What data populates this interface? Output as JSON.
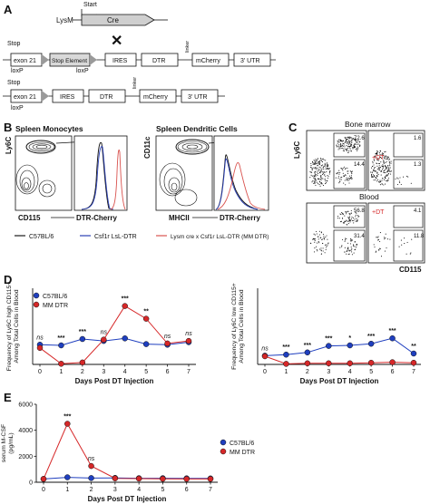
{
  "panel_labels": {
    "a": "A",
    "b": "B",
    "c": "C",
    "d": "D",
    "e": "E"
  },
  "construct": {
    "start": "Start",
    "lysm": "LysM",
    "cre": "Cre",
    "row2": {
      "stop": "Stop",
      "exon": "exon 21",
      "stop_element": "Stop Element",
      "loxp_a": "loxP",
      "loxp_b": "loxP",
      "ires": "IRES",
      "dtr": "DTR",
      "linker": "linker",
      "mcherry": "mCherry",
      "utr": "3' UTR",
      "cross": "✕"
    },
    "row3": {
      "stop": "Stop",
      "exon": "exon 21",
      "loxp": "loxP",
      "ires": "IRES",
      "dtr": "DTR",
      "linker": "linker",
      "mcherry": "mCherry",
      "utr": "3' UTR"
    }
  },
  "panel_b": {
    "title_left": "Spleen Monocytes",
    "title_right": "Spleen Dendritic Cells",
    "ylabel_left": "Ly6C",
    "ylabel_right": "CD11c",
    "xlabel_left_a": "CD115",
    "xlabel_left_b": "DTR-Cherry",
    "xlabel_right_a": "MHCII",
    "xlabel_right_b": "DTR-Cherry",
    "legend": [
      {
        "label": "C57BL/6",
        "color": "#1a1a1a"
      },
      {
        "label": "Csf1r LsL-DTR",
        "color": "#2a3fb5"
      },
      {
        "label": "Lysm cre x Csf1r LsL-DTR (MM DTR)",
        "color": "#d9534f"
      }
    ]
  },
  "panel_c": {
    "title_bm": "Bone marrow",
    "title_blood": "Blood",
    "ylabel": "Ly6C",
    "xlabel": "CD115",
    "dt": "+DT",
    "gates": {
      "bm_ctrl_top": "72.6",
      "bm_ctrl_bot": "14.4",
      "bm_dt_top": "1.6",
      "bm_dt_bot": "1.3",
      "bl_ctrl_top": "56.8",
      "bl_ctrl_bot": "31.4",
      "bl_dt_top": "4.1",
      "bl_dt_bot": "11.8"
    }
  },
  "colors": {
    "c57": "#1f3fbf",
    "mm": "#d62728",
    "ink": "#111111"
  },
  "chart_data": [
    {
      "type": "line",
      "title": "",
      "xlabel": "Days Post DT Injection",
      "ylabel": "Frequency of Ly6C high CD115+ Among Total Cells in Blood",
      "x": [
        0,
        1,
        2,
        3,
        4,
        5,
        6,
        7
      ],
      "ylim": [
        0,
        12
      ],
      "series": [
        {
          "name": "C57BL/6",
          "values": [
            3.1,
            3.0,
            4.0,
            3.7,
            4.1,
            3.2,
            3.1,
            3.5
          ]
        },
        {
          "name": "MM DTR",
          "values": [
            2.6,
            0.1,
            0.3,
            3.9,
            9.2,
            7.2,
            3.3,
            3.7
          ]
        }
      ],
      "significance": [
        "ns",
        "***",
        "***",
        "ns",
        "***",
        "**",
        "ns",
        "ns"
      ],
      "legend": [
        {
          "label": "C57BL/6"
        },
        {
          "label": "MM DTR"
        }
      ]
    },
    {
      "type": "line",
      "title": "",
      "xlabel": "Days Post DT Injection",
      "ylabel": "Frequency of Ly6C low CD115+ Among Total Cells in Blood",
      "x": [
        0,
        1,
        2,
        3,
        4,
        5,
        6,
        7
      ],
      "ylim": [
        0,
        14
      ],
      "series": [
        {
          "name": "C57BL/6",
          "values": [
            1.6,
            1.8,
            2.2,
            3.4,
            3.5,
            3.8,
            4.8,
            2.0
          ]
        },
        {
          "name": "MM DTR",
          "values": [
            1.5,
            0.1,
            0.2,
            0.2,
            0.2,
            0.3,
            0.4,
            0.3
          ]
        }
      ],
      "significance": [
        "ns",
        "***",
        "***",
        "***",
        "*",
        "***",
        "***",
        "**"
      ]
    },
    {
      "type": "line",
      "title": "",
      "xlabel": "Days Post DT Injection",
      "ylabel": "serum M-CSF (pg/mL)",
      "x": [
        0,
        1,
        2,
        3,
        4,
        5,
        6,
        7
      ],
      "ylim": [
        0,
        6000
      ],
      "yticks": [
        0,
        2000,
        4000,
        6000
      ],
      "series": [
        {
          "name": "C57BL/6",
          "values": [
            250,
            380,
            320,
            330,
            310,
            310,
            300,
            290
          ]
        },
        {
          "name": "MM DTR",
          "values": [
            250,
            4500,
            1250,
            300,
            280,
            260,
            250,
            250
          ]
        }
      ],
      "significance": [
        "",
        "***",
        "ns",
        "",
        "",
        "",
        "",
        ""
      ],
      "legend": [
        {
          "label": "C57BL/6"
        },
        {
          "label": "MM DTR"
        }
      ]
    }
  ]
}
